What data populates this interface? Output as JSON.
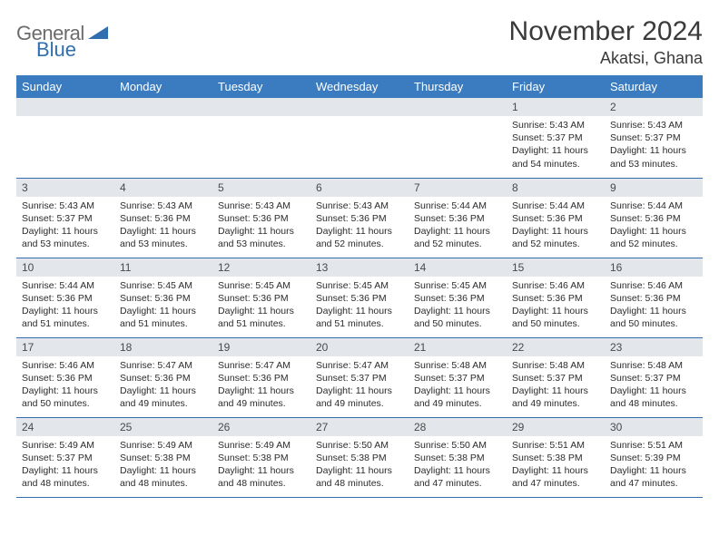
{
  "brand": {
    "word1": "General",
    "word2": "Blue",
    "logo_triangle_color": "#2f6fb0"
  },
  "title": "November 2024",
  "location": "Akatsi, Ghana",
  "colors": {
    "header_bg": "#3a7cbf",
    "header_text": "#ffffff",
    "daynum_bg": "#e3e6ea",
    "border": "#2f6fb0",
    "body_text": "#2b2b2b"
  },
  "day_headers": [
    "Sunday",
    "Monday",
    "Tuesday",
    "Wednesday",
    "Thursday",
    "Friday",
    "Saturday"
  ],
  "weeks": [
    [
      null,
      null,
      null,
      null,
      null,
      {
        "n": "1",
        "sunrise": "Sunrise: 5:43 AM",
        "sunset": "Sunset: 5:37 PM",
        "daylight": "Daylight: 11 hours and 54 minutes."
      },
      {
        "n": "2",
        "sunrise": "Sunrise: 5:43 AM",
        "sunset": "Sunset: 5:37 PM",
        "daylight": "Daylight: 11 hours and 53 minutes."
      }
    ],
    [
      {
        "n": "3",
        "sunrise": "Sunrise: 5:43 AM",
        "sunset": "Sunset: 5:37 PM",
        "daylight": "Daylight: 11 hours and 53 minutes."
      },
      {
        "n": "4",
        "sunrise": "Sunrise: 5:43 AM",
        "sunset": "Sunset: 5:36 PM",
        "daylight": "Daylight: 11 hours and 53 minutes."
      },
      {
        "n": "5",
        "sunrise": "Sunrise: 5:43 AM",
        "sunset": "Sunset: 5:36 PM",
        "daylight": "Daylight: 11 hours and 53 minutes."
      },
      {
        "n": "6",
        "sunrise": "Sunrise: 5:43 AM",
        "sunset": "Sunset: 5:36 PM",
        "daylight": "Daylight: 11 hours and 52 minutes."
      },
      {
        "n": "7",
        "sunrise": "Sunrise: 5:44 AM",
        "sunset": "Sunset: 5:36 PM",
        "daylight": "Daylight: 11 hours and 52 minutes."
      },
      {
        "n": "8",
        "sunrise": "Sunrise: 5:44 AM",
        "sunset": "Sunset: 5:36 PM",
        "daylight": "Daylight: 11 hours and 52 minutes."
      },
      {
        "n": "9",
        "sunrise": "Sunrise: 5:44 AM",
        "sunset": "Sunset: 5:36 PM",
        "daylight": "Daylight: 11 hours and 52 minutes."
      }
    ],
    [
      {
        "n": "10",
        "sunrise": "Sunrise: 5:44 AM",
        "sunset": "Sunset: 5:36 PM",
        "daylight": "Daylight: 11 hours and 51 minutes."
      },
      {
        "n": "11",
        "sunrise": "Sunrise: 5:45 AM",
        "sunset": "Sunset: 5:36 PM",
        "daylight": "Daylight: 11 hours and 51 minutes."
      },
      {
        "n": "12",
        "sunrise": "Sunrise: 5:45 AM",
        "sunset": "Sunset: 5:36 PM",
        "daylight": "Daylight: 11 hours and 51 minutes."
      },
      {
        "n": "13",
        "sunrise": "Sunrise: 5:45 AM",
        "sunset": "Sunset: 5:36 PM",
        "daylight": "Daylight: 11 hours and 51 minutes."
      },
      {
        "n": "14",
        "sunrise": "Sunrise: 5:45 AM",
        "sunset": "Sunset: 5:36 PM",
        "daylight": "Daylight: 11 hours and 50 minutes."
      },
      {
        "n": "15",
        "sunrise": "Sunrise: 5:46 AM",
        "sunset": "Sunset: 5:36 PM",
        "daylight": "Daylight: 11 hours and 50 minutes."
      },
      {
        "n": "16",
        "sunrise": "Sunrise: 5:46 AM",
        "sunset": "Sunset: 5:36 PM",
        "daylight": "Daylight: 11 hours and 50 minutes."
      }
    ],
    [
      {
        "n": "17",
        "sunrise": "Sunrise: 5:46 AM",
        "sunset": "Sunset: 5:36 PM",
        "daylight": "Daylight: 11 hours and 50 minutes."
      },
      {
        "n": "18",
        "sunrise": "Sunrise: 5:47 AM",
        "sunset": "Sunset: 5:36 PM",
        "daylight": "Daylight: 11 hours and 49 minutes."
      },
      {
        "n": "19",
        "sunrise": "Sunrise: 5:47 AM",
        "sunset": "Sunset: 5:36 PM",
        "daylight": "Daylight: 11 hours and 49 minutes."
      },
      {
        "n": "20",
        "sunrise": "Sunrise: 5:47 AM",
        "sunset": "Sunset: 5:37 PM",
        "daylight": "Daylight: 11 hours and 49 minutes."
      },
      {
        "n": "21",
        "sunrise": "Sunrise: 5:48 AM",
        "sunset": "Sunset: 5:37 PM",
        "daylight": "Daylight: 11 hours and 49 minutes."
      },
      {
        "n": "22",
        "sunrise": "Sunrise: 5:48 AM",
        "sunset": "Sunset: 5:37 PM",
        "daylight": "Daylight: 11 hours and 49 minutes."
      },
      {
        "n": "23",
        "sunrise": "Sunrise: 5:48 AM",
        "sunset": "Sunset: 5:37 PM",
        "daylight": "Daylight: 11 hours and 48 minutes."
      }
    ],
    [
      {
        "n": "24",
        "sunrise": "Sunrise: 5:49 AM",
        "sunset": "Sunset: 5:37 PM",
        "daylight": "Daylight: 11 hours and 48 minutes."
      },
      {
        "n": "25",
        "sunrise": "Sunrise: 5:49 AM",
        "sunset": "Sunset: 5:38 PM",
        "daylight": "Daylight: 11 hours and 48 minutes."
      },
      {
        "n": "26",
        "sunrise": "Sunrise: 5:49 AM",
        "sunset": "Sunset: 5:38 PM",
        "daylight": "Daylight: 11 hours and 48 minutes."
      },
      {
        "n": "27",
        "sunrise": "Sunrise: 5:50 AM",
        "sunset": "Sunset: 5:38 PM",
        "daylight": "Daylight: 11 hours and 48 minutes."
      },
      {
        "n": "28",
        "sunrise": "Sunrise: 5:50 AM",
        "sunset": "Sunset: 5:38 PM",
        "daylight": "Daylight: 11 hours and 47 minutes."
      },
      {
        "n": "29",
        "sunrise": "Sunrise: 5:51 AM",
        "sunset": "Sunset: 5:38 PM",
        "daylight": "Daylight: 11 hours and 47 minutes."
      },
      {
        "n": "30",
        "sunrise": "Sunrise: 5:51 AM",
        "sunset": "Sunset: 5:39 PM",
        "daylight": "Daylight: 11 hours and 47 minutes."
      }
    ]
  ]
}
